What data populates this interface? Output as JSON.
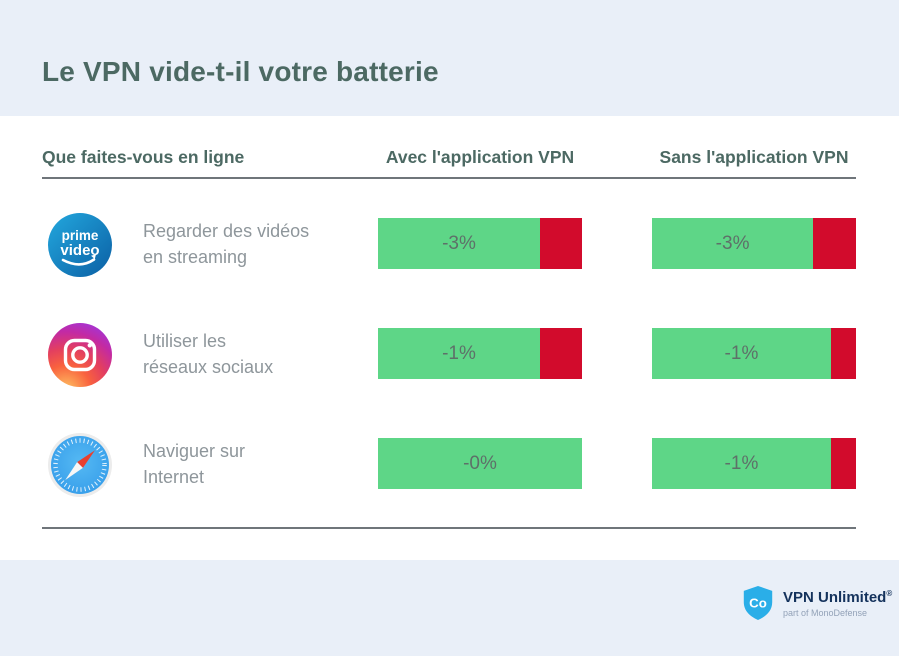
{
  "title": "Le VPN vide-t-il votre batterie",
  "colors": {
    "band": "#e9eff8",
    "heading": "#4c6963",
    "row_text": "#8e969b",
    "bar_green": "#5ed687",
    "bar_red": "#d20b2c",
    "pct_text": "#5e7069",
    "divider": "#6f757a",
    "brand_navy": "#14325c",
    "brand_gray": "#93a2b8",
    "shield_blue": "#2aaee8"
  },
  "table": {
    "columns": {
      "activity": "Que faites-vous en ligne",
      "with_vpn": "Avec l'application VPN",
      "without_vpn": "Sans l'application VPN"
    },
    "rows": [
      {
        "app": "Prime Video",
        "icon": "prime-video-icon",
        "icon_text_line1": "prime",
        "icon_text_line2": "video",
        "activity_line1": "Regarder des vidéos",
        "activity_line2": "en streaming",
        "with_vpn": {
          "label": "-3%",
          "green_pct": 79.4
        },
        "without_vpn": {
          "label": "-3%",
          "green_pct": 79.0
        }
      },
      {
        "app": "Instagram",
        "icon": "instagram-icon",
        "activity_line1": "Utiliser les",
        "activity_line2": "réseaux sociaux",
        "with_vpn": {
          "label": "-1%",
          "green_pct": 79.4
        },
        "without_vpn": {
          "label": "-1%",
          "green_pct": 87.7
        }
      },
      {
        "app": "Safari",
        "icon": "safari-icon",
        "activity_line1": "Naviguer sur",
        "activity_line2": "Internet",
        "with_vpn": {
          "label": "-0%",
          "green_pct": 100
        },
        "without_vpn": {
          "label": "-1%",
          "green_pct": 87.7
        }
      }
    ]
  },
  "footer": {
    "brand": "VPN Unlimited",
    "registered": "®",
    "subtitle": "part of MonoDefense",
    "logo_monogram": "Co"
  },
  "chart_data": {
    "type": "table",
    "title": "Le VPN vide-t-il votre batterie",
    "categories": [
      "Regarder des vidéos en streaming",
      "Utiliser les réseaux sociaux",
      "Naviguer sur Internet"
    ],
    "apps": [
      "Prime Video",
      "Instagram",
      "Safari"
    ],
    "series": [
      {
        "name": "Avec l'application VPN",
        "values": [
          -3,
          -1,
          0
        ],
        "labels": [
          "-3%",
          "-1%",
          "-0%"
        ]
      },
      {
        "name": "Sans l'application VPN",
        "values": [
          -3,
          -1,
          -1
        ],
        "labels": [
          "-3%",
          "-1%",
          "-1%"
        ]
      }
    ],
    "legend_position": "column-headers",
    "grid": false
  }
}
